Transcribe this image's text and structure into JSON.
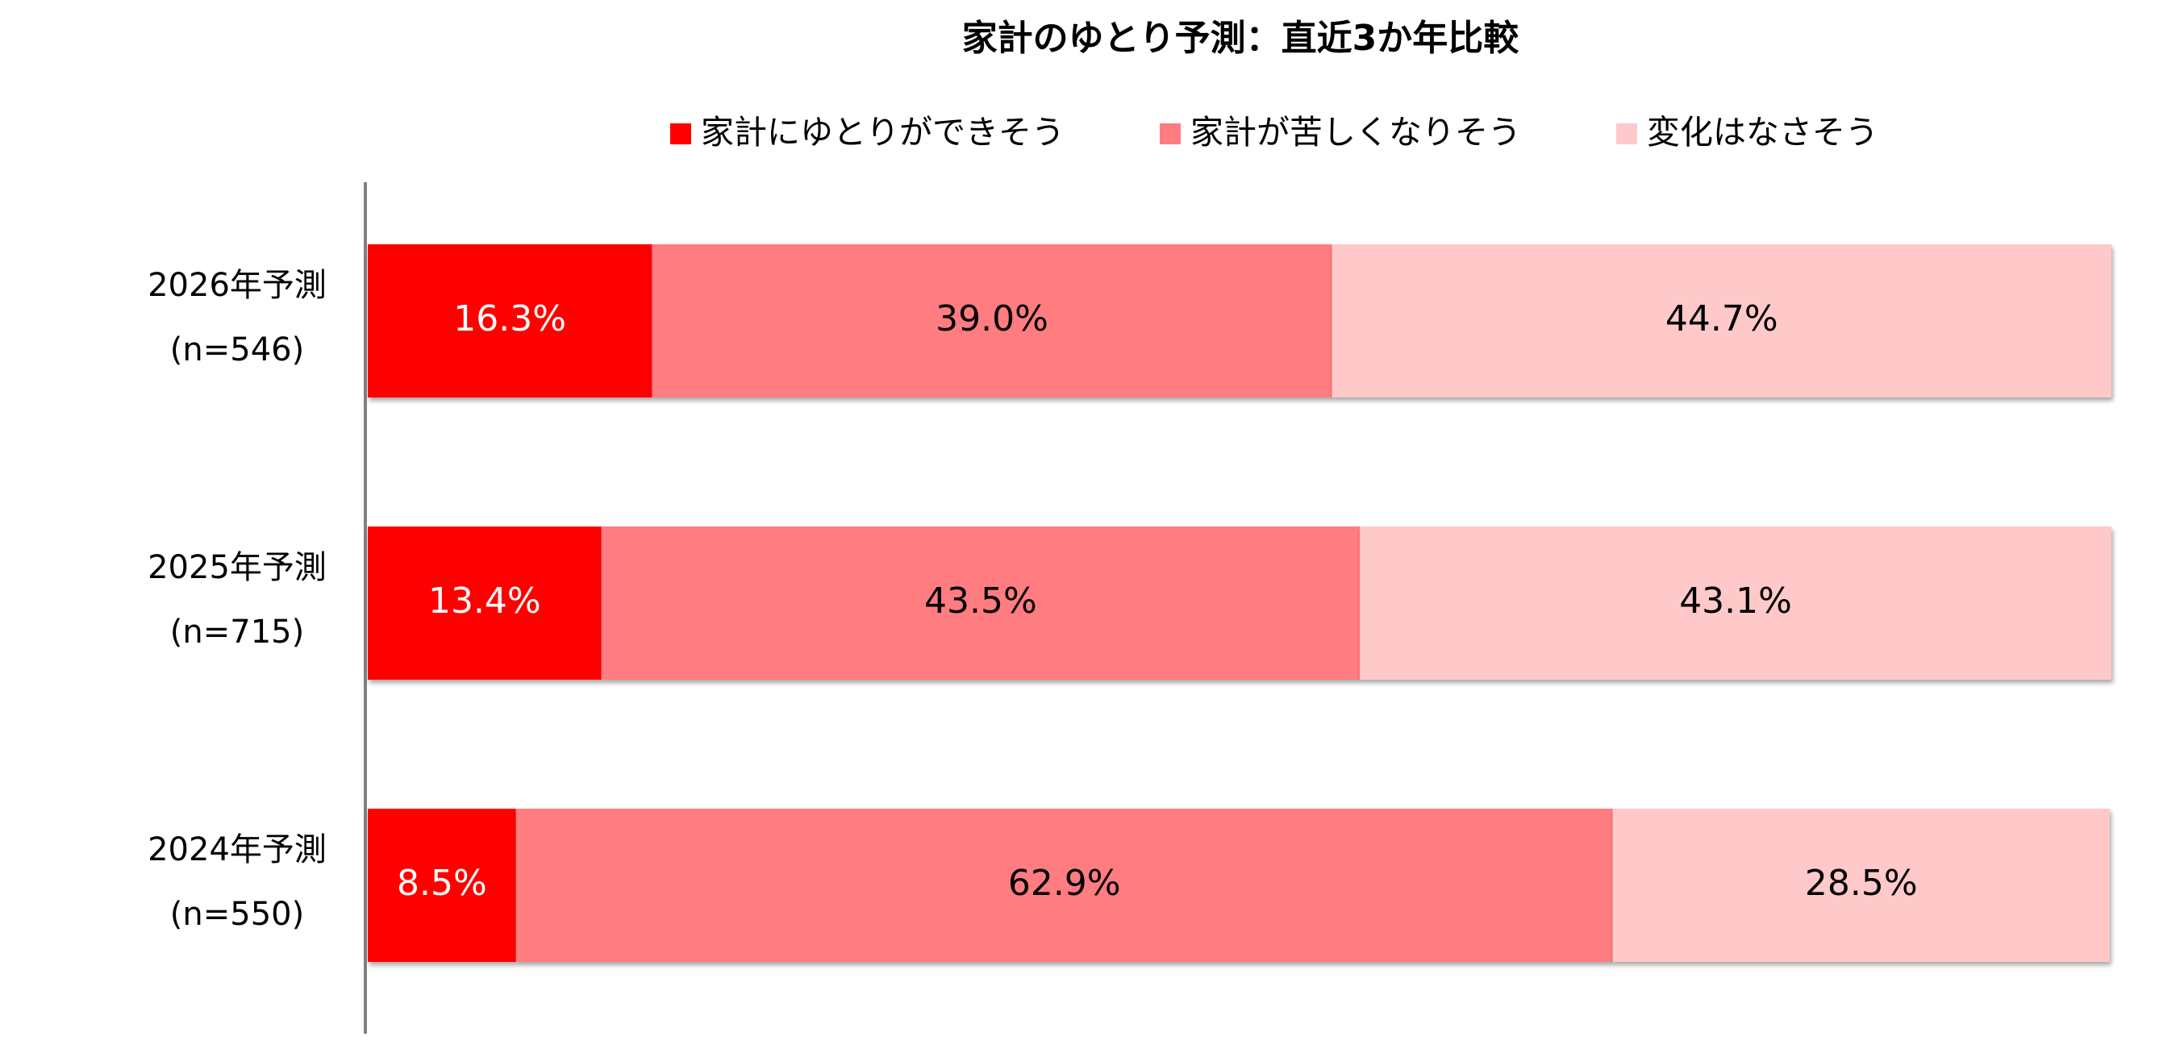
{
  "chart_data": {
    "type": "stacked-bar-horizontal",
    "title": "家計のゆとり予測：直近3か年比較",
    "categories": [
      "2026年予測",
      "2025年予測",
      "2024年予測"
    ],
    "category_notes": [
      "(n=546)",
      "(n=715)",
      "(n=550)"
    ],
    "series": [
      {
        "name": "家計にゆとりができそう",
        "color": "#ff0000",
        "label_color": "#ffffff",
        "values": [
          16.3,
          13.4,
          8.5
        ],
        "value_labels": [
          "16.3%",
          "13.4%",
          "8.5%"
        ]
      },
      {
        "name": "家計が苦しくなりそう",
        "color": "#ff7c80",
        "label_color": "#000000",
        "values": [
          39.0,
          43.5,
          62.9
        ],
        "value_labels": [
          "39.0%",
          "43.5%",
          "62.9%"
        ]
      },
      {
        "name": "変化はなさそう",
        "color": "#ffc9c9",
        "label_color": "#000000",
        "values": [
          44.7,
          43.1,
          28.5
        ],
        "value_labels": [
          "44.7%",
          "43.1%",
          "28.5%"
        ]
      }
    ],
    "xlim": [
      0,
      100
    ]
  }
}
